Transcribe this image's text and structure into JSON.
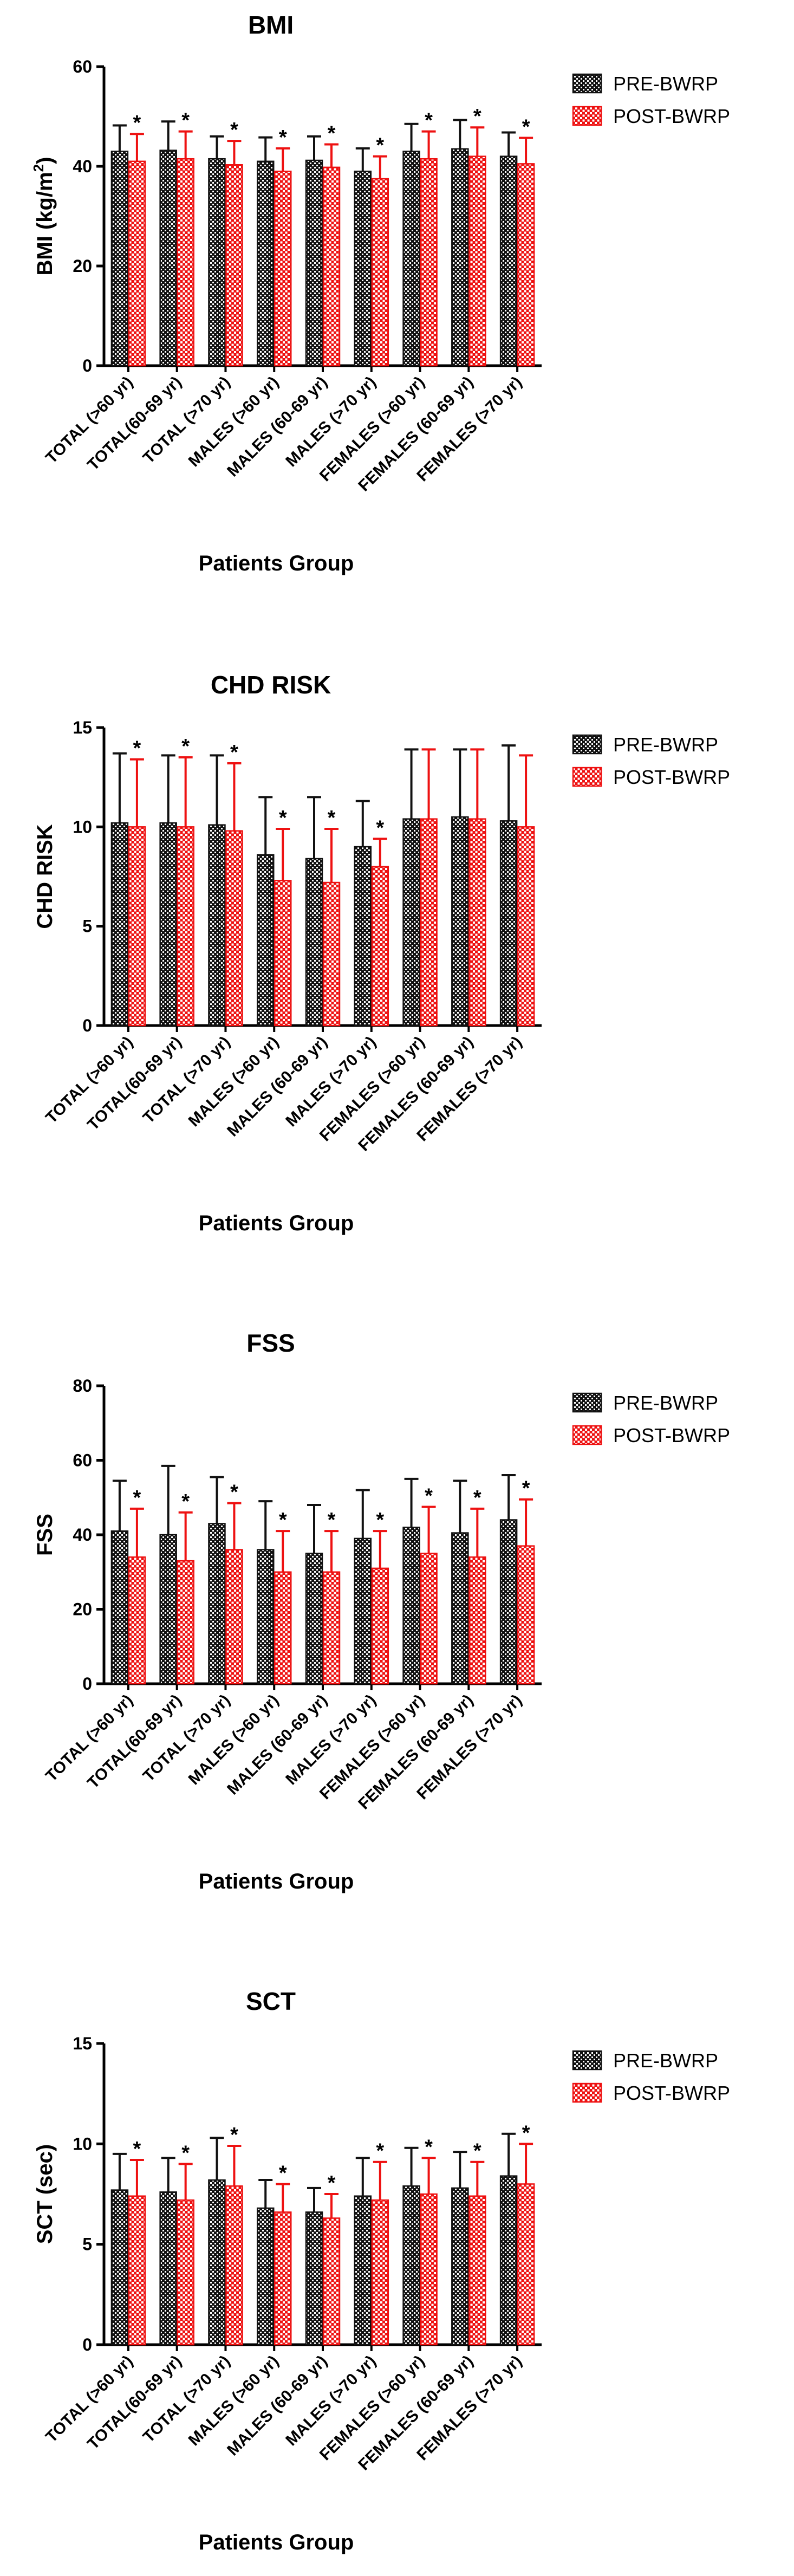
{
  "legend": {
    "pre": "PRE-BWRP",
    "post": "POST-BWRP"
  },
  "colors": {
    "pre": "#111111",
    "post": "#ee1111",
    "axis": "#000000"
  },
  "significance_marker": "*",
  "chart_data": [
    {
      "type": "bar",
      "title": "BMI",
      "ylabel_main": "BMI (kg/m",
      "ylabel_sup": "2",
      "ylabel_tail": ")",
      "xlabel": "Patients Group",
      "ylim": [
        0,
        60
      ],
      "yticks": [
        0,
        20,
        40,
        60
      ],
      "categories": [
        "TOTAL (>60 yr)",
        "TOTAL(60-69 yr)",
        "TOTAL (>70 yr)",
        "MALES (>60 yr)",
        "MALES (60-69 yr)",
        "MALES (>70 yr)",
        "FEMALES (>60 yr)",
        "FEMALES (60-69 yr)",
        "FEMALES (>70 yr)"
      ],
      "series": [
        {
          "name": "PRE-BWRP",
          "values": [
            43,
            43.2,
            41.5,
            41,
            41.2,
            39,
            43,
            43.5,
            42
          ],
          "errors": [
            5.2,
            5.8,
            4.5,
            4.8,
            4.8,
            4.6,
            5.5,
            5.8,
            4.8
          ]
        },
        {
          "name": "POST-BWRP",
          "values": [
            41,
            41.5,
            40.3,
            39,
            39.8,
            37.5,
            41.5,
            42,
            40.5
          ],
          "errors": [
            5.5,
            5.5,
            4.8,
            4.6,
            4.6,
            4.5,
            5.5,
            5.8,
            5.2
          ]
        }
      ],
      "significant": [
        true,
        true,
        true,
        true,
        true,
        true,
        true,
        true,
        true
      ]
    },
    {
      "type": "bar",
      "title": "CHD RISK",
      "ylabel_main": "CHD RISK",
      "ylabel_sup": "",
      "ylabel_tail": "",
      "xlabel": "Patients Group",
      "ylim": [
        0,
        15
      ],
      "yticks": [
        0,
        5,
        10,
        15
      ],
      "categories": [
        "TOTAL (>60 yr)",
        "TOTAL(60-69 yr)",
        "TOTAL (>70 yr)",
        "MALES (>60 yr)",
        "MALES (60-69 yr)",
        "MALES (>70 yr)",
        "FEMALES (>60 yr)",
        "FEMALES (60-69 yr)",
        "FEMALES (>70 yr)"
      ],
      "series": [
        {
          "name": "PRE-BWRP",
          "values": [
            10.2,
            10.2,
            10.1,
            8.6,
            8.4,
            9.0,
            10.4,
            10.5,
            10.3
          ],
          "errors": [
            3.5,
            3.4,
            3.5,
            2.9,
            3.1,
            2.3,
            3.5,
            3.4,
            3.8
          ]
        },
        {
          "name": "POST-BWRP",
          "values": [
            10.0,
            10.0,
            9.8,
            7.3,
            7.2,
            8.0,
            10.4,
            10.4,
            10.0
          ],
          "errors": [
            3.4,
            3.5,
            3.4,
            2.6,
            2.7,
            1.4,
            3.5,
            3.5,
            3.6
          ]
        }
      ],
      "significant": [
        true,
        true,
        true,
        true,
        true,
        true,
        false,
        false,
        false
      ]
    },
    {
      "type": "bar",
      "title": "FSS",
      "ylabel_main": "FSS",
      "ylabel_sup": "",
      "ylabel_tail": "",
      "xlabel": "Patients Group",
      "ylim": [
        0,
        80
      ],
      "yticks": [
        0,
        20,
        40,
        60,
        80
      ],
      "categories": [
        "TOTAL (>60 yr)",
        "TOTAL(60-69 yr)",
        "TOTAL (>70 yr)",
        "MALES (>60 yr)",
        "MALES (60-69 yr)",
        "MALES (>70 yr)",
        "FEMALES (>60 yr)",
        "FEMALES (60-69 yr)",
        "FEMALES (>70 yr)"
      ],
      "series": [
        {
          "name": "PRE-BWRP",
          "values": [
            41,
            40,
            43,
            36,
            35,
            39,
            42,
            40.5,
            44
          ],
          "errors": [
            13.5,
            18.5,
            12.5,
            13,
            13,
            13,
            13,
            14,
            12
          ]
        },
        {
          "name": "POST-BWRP",
          "values": [
            34,
            33,
            36,
            30,
            30,
            31,
            35,
            34,
            37
          ],
          "errors": [
            13,
            13,
            12.5,
            11,
            11,
            10,
            12.5,
            13,
            12.5
          ]
        }
      ],
      "significant": [
        true,
        true,
        true,
        true,
        true,
        true,
        true,
        true,
        true
      ]
    },
    {
      "type": "bar",
      "title": "SCT",
      "ylabel_main": "SCT (sec)",
      "ylabel_sup": "",
      "ylabel_tail": "",
      "xlabel": "Patients Group",
      "ylim": [
        0,
        15
      ],
      "yticks": [
        0,
        5,
        10,
        15
      ],
      "categories": [
        "TOTAL (>60 yr)",
        "TOTAL(60-69 yr)",
        "TOTAL (>70 yr)",
        "MALES (>60 yr)",
        "MALES (60-69 yr)",
        "MALES (>70 yr)",
        "FEMALES (>60 yr)",
        "FEMALES (60-69 yr)",
        "FEMALES (>70 yr)"
      ],
      "series": [
        {
          "name": "PRE-BWRP",
          "values": [
            7.7,
            7.6,
            8.2,
            6.8,
            6.6,
            7.4,
            7.9,
            7.8,
            8.4
          ],
          "errors": [
            1.8,
            1.7,
            2.1,
            1.4,
            1.2,
            1.9,
            1.9,
            1.8,
            2.1
          ]
        },
        {
          "name": "POST-BWRP",
          "values": [
            7.4,
            7.2,
            7.9,
            6.6,
            6.3,
            7.2,
            7.5,
            7.4,
            8.0
          ],
          "errors": [
            1.8,
            1.8,
            2.0,
            1.4,
            1.2,
            1.9,
            1.8,
            1.7,
            2.0
          ]
        }
      ],
      "significant": [
        true,
        true,
        true,
        true,
        true,
        true,
        true,
        true,
        true
      ]
    }
  ]
}
